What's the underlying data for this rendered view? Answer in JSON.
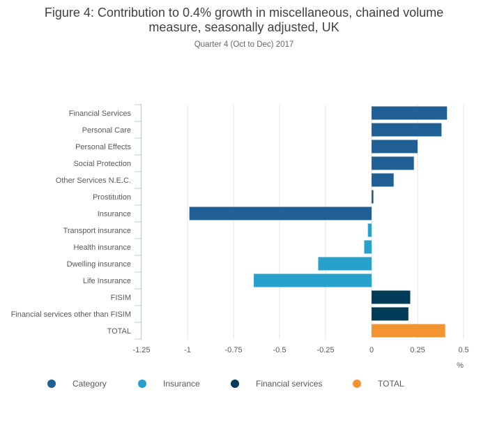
{
  "header": {
    "title_line1": "Figure 4: Contribution to 0.4% growth in miscellaneous, chained volume",
    "title_line2": "measure, seasonally adjusted, UK",
    "subtitle": "Quarter 4 (Oct to Dec) 2017"
  },
  "colors": {
    "category": "#206095",
    "insurance": "#27a0cc",
    "financial_services": "#003c57",
    "total": "#f39431",
    "grid": "#e6e6e6",
    "axis": "#bcc5d6"
  },
  "legend": [
    {
      "label": "Category",
      "series": "category"
    },
    {
      "label": "Insurance",
      "series": "insurance"
    },
    {
      "label": "Financial services",
      "series": "financial_services"
    },
    {
      "label": "TOTAL",
      "series": "total"
    }
  ],
  "chart_data": {
    "type": "bar",
    "orientation": "horizontal",
    "title": "Figure 4: Contribution to 0.4% growth in miscellaneous, chained volume measure, seasonally adjusted, UK",
    "subtitle": "Quarter 4 (Oct to Dec) 2017",
    "xlabel": "%",
    "ylabel": "",
    "xlim": [
      -1.25,
      0.5
    ],
    "xticks": [
      -1.25,
      -1,
      -0.75,
      -0.5,
      -0.25,
      0,
      0.25,
      0.5
    ],
    "xtick_labels": [
      "-1.25",
      "-1",
      "-0.75",
      "-0.5",
      "-0.25",
      "0",
      "0.25",
      "0.5"
    ],
    "grid": true,
    "legend_position": "bottom",
    "categories": [
      "Financial Services",
      "Personal Care",
      "Personal Effects",
      "Social Protection",
      "Other Services N.E.C.",
      "Prostitution",
      "Insurance",
      "Transport insurance",
      "Health insurance",
      "Dwelling insurance",
      "Life Insurance",
      "FISIM",
      "Financial services other than FISIM",
      "TOTAL"
    ],
    "values": [
      0.41,
      0.38,
      0.25,
      0.23,
      0.12,
      0.01,
      -0.99,
      -0.02,
      -0.04,
      -0.29,
      -0.64,
      0.21,
      0.2,
      0.4
    ],
    "series_of_category": [
      "category",
      "category",
      "category",
      "category",
      "category",
      "category",
      "category",
      "insurance",
      "insurance",
      "insurance",
      "insurance",
      "financial_services",
      "financial_services",
      "total"
    ]
  }
}
